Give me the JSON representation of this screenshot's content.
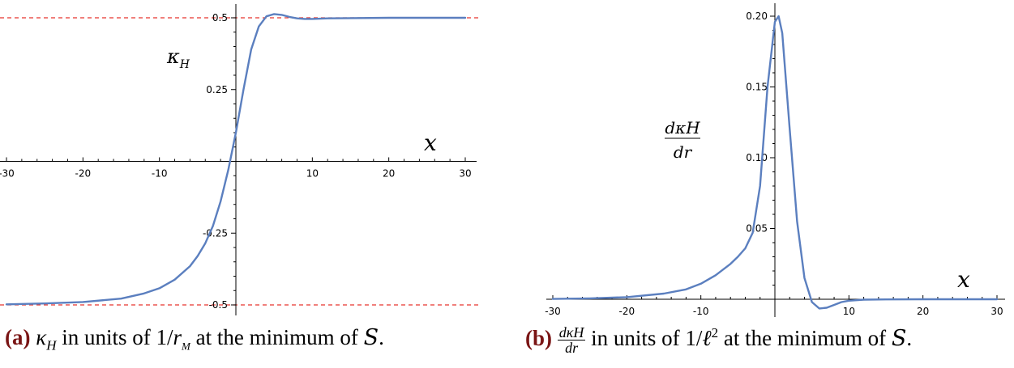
{
  "chart_data": [
    {
      "type": "line",
      "ylabel": "κH",
      "xlabel": "x",
      "xlim": [
        -30,
        30
      ],
      "ylim": [
        -0.5,
        0.5
      ],
      "x_ticks": [
        "-30",
        "-20",
        "-10",
        "10",
        "20",
        "30"
      ],
      "y_ticks": [
        "0.5",
        "0.25",
        "-0.25",
        "-0.5"
      ],
      "reference_lines": [
        {
          "y": 0.5,
          "style": "dashed",
          "color": "#e8342e"
        },
        {
          "y": -0.5,
          "style": "dashed",
          "color": "#e8342e"
        }
      ],
      "series": [
        {
          "color": "#5b7fbf",
          "x": [
            -30,
            -25,
            -20,
            -15,
            -12,
            -10,
            -8,
            -6,
            -5,
            -4,
            -3,
            -2,
            -1,
            0,
            1,
            2,
            3,
            4,
            5,
            6,
            7,
            8,
            9,
            10,
            12,
            15,
            20,
            25,
            30
          ],
          "y": [
            -0.498,
            -0.495,
            -0.49,
            -0.478,
            -0.46,
            -0.442,
            -0.412,
            -0.365,
            -0.33,
            -0.285,
            -0.225,
            -0.14,
            -0.03,
            0.1,
            0.25,
            0.39,
            0.47,
            0.505,
            0.513,
            0.51,
            0.503,
            0.498,
            0.496,
            0.496,
            0.498,
            0.499,
            0.5,
            0.5,
            0.5
          ]
        }
      ]
    },
    {
      "type": "line",
      "ylabel_num": "dκH",
      "ylabel_den": "dr",
      "xlabel": "x",
      "xlim": [
        -30,
        30
      ],
      "ylim": [
        -0.005,
        0.21
      ],
      "x_ticks": [
        "-30",
        "-20",
        "-10",
        "10",
        "20",
        "30"
      ],
      "y_ticks": [
        "0.20",
        "0.15",
        "0.10",
        "0.05"
      ],
      "series": [
        {
          "color": "#5b7fbf",
          "x": [
            -30,
            -25,
            -20,
            -15,
            -12,
            -10,
            -8,
            -6,
            -5,
            -4,
            -3,
            -2,
            -1,
            0,
            0.5,
            1,
            2,
            3,
            4,
            5,
            6,
            7,
            8,
            9,
            10,
            12,
            15,
            20,
            25,
            30
          ],
          "y": [
            0.0002,
            0.0006,
            0.0015,
            0.004,
            0.007,
            0.011,
            0.017,
            0.025,
            0.03,
            0.036,
            0.047,
            0.08,
            0.15,
            0.196,
            0.2,
            0.188,
            0.12,
            0.055,
            0.015,
            -0.002,
            -0.0065,
            -0.006,
            -0.004,
            -0.002,
            -0.001,
            -0.0003,
            -0.0001,
            0,
            0,
            0
          ]
        }
      ]
    }
  ],
  "captions": {
    "a": {
      "label": "(a)",
      "kappa": "κ",
      "kappa_sub": "H",
      "text1": " in units of 1/",
      "r": "r",
      "r_sub": "M",
      "text2": " at the minimum of ",
      "S": "S",
      "end": "."
    },
    "b": {
      "label": "(b)",
      "num": "dκH",
      "den": "dr",
      "text1": " in units of 1/",
      "ell": "ℓ",
      "sup": "2",
      "text2": " at the minimum of ",
      "S": "S",
      "end": "."
    }
  }
}
